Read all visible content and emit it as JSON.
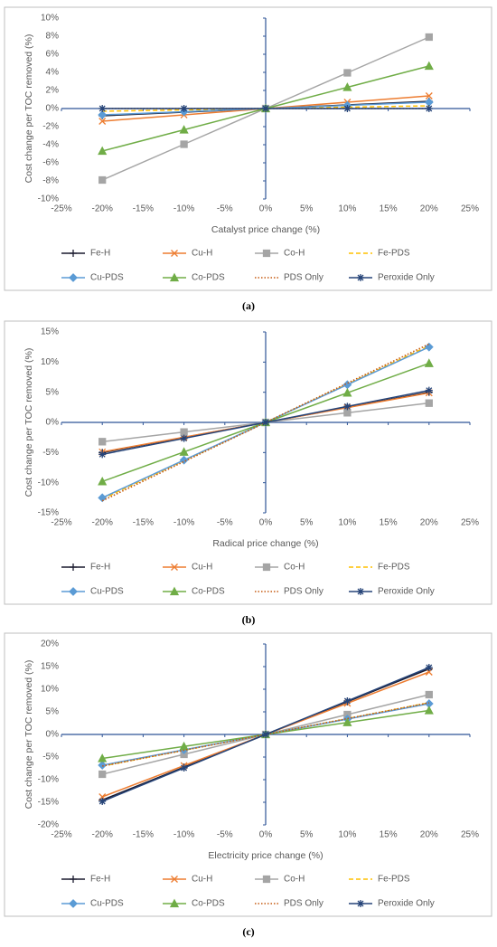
{
  "chart_data": [
    {
      "type": "line",
      "label": "(a)",
      "x_label": "Catalyst price change (%)",
      "y_label": "Cost change per TOC removed (%)",
      "grid": false,
      "x": [
        -20,
        -10,
        0,
        10,
        20
      ],
      "xlim": [
        -25,
        25
      ],
      "xticks": [
        {
          "value": -25,
          "label": "-25%"
        },
        {
          "value": -20,
          "label": "-20%"
        },
        {
          "value": -15,
          "label": "-15%"
        },
        {
          "value": -10,
          "label": "-10%"
        },
        {
          "value": -5,
          "label": "-5%"
        },
        {
          "value": 0,
          "label": "0%"
        },
        {
          "value": 5,
          "label": "5%"
        },
        {
          "value": 10,
          "label": "10%"
        },
        {
          "value": 15,
          "label": "15%"
        },
        {
          "value": 20,
          "label": "20%"
        },
        {
          "value": 25,
          "label": "25%"
        }
      ],
      "ylim": [
        -10,
        10
      ],
      "yticks": [
        {
          "value": -10,
          "label": "-10%"
        },
        {
          "value": -8,
          "label": "-8%"
        },
        {
          "value": -6,
          "label": "-6%"
        },
        {
          "value": -4,
          "label": "-4%"
        },
        {
          "value": -2,
          "label": "-2%"
        },
        {
          "value": 0,
          "label": "0%"
        },
        {
          "value": 2,
          "label": "2%"
        },
        {
          "value": 4,
          "label": "4%"
        },
        {
          "value": 6,
          "label": "6%"
        },
        {
          "value": 8,
          "label": "8%"
        },
        {
          "value": 10,
          "label": "10%"
        }
      ],
      "series": [
        {
          "name": "Fe-H",
          "color": "#1a1a2e",
          "marker": "plus",
          "line_style": "solid",
          "values": [
            -0.8,
            -0.4,
            0,
            0.4,
            0.8
          ]
        },
        {
          "name": "Cu-H",
          "color": "#ed7d31",
          "marker": "x",
          "line_style": "solid",
          "values": [
            -1.4,
            -0.7,
            0,
            0.7,
            1.4
          ]
        },
        {
          "name": "Co-H",
          "color": "#a5a5a5",
          "marker": "square",
          "line_style": "solid",
          "values": [
            -7.9,
            -3.95,
            0,
            3.95,
            7.9
          ]
        },
        {
          "name": "Fe-PDS",
          "color": "#ffc000",
          "marker": "none",
          "line_style": "dashed",
          "values": [
            -0.3,
            -0.15,
            0,
            0.15,
            0.3
          ]
        },
        {
          "name": "Cu-PDS",
          "color": "#5b9bd5",
          "marker": "diamond",
          "line_style": "solid",
          "values": [
            -0.7,
            -0.35,
            0,
            0.35,
            0.7
          ]
        },
        {
          "name": "Co-PDS",
          "color": "#70ad47",
          "marker": "triangle",
          "line_style": "solid",
          "values": [
            -4.7,
            -2.35,
            0,
            2.35,
            4.7
          ]
        },
        {
          "name": "PDS Only",
          "color": "#c55a11",
          "marker": "none",
          "line_style": "dotted",
          "values": [
            0,
            0,
            0,
            0,
            0
          ]
        },
        {
          "name": "Peroxide Only",
          "color": "#264478",
          "marker": "asterisk",
          "line_style": "solid",
          "values": [
            0,
            0,
            0,
            0,
            0
          ]
        }
      ]
    },
    {
      "type": "line",
      "label": "(b)",
      "x_label": "Radical price change (%)",
      "y_label": "Cost change per TOC removed (%)",
      "grid": false,
      "x": [
        -20,
        -10,
        0,
        10,
        20
      ],
      "xlim": [
        -25,
        25
      ],
      "xticks": [
        {
          "value": -25,
          "label": "-25%"
        },
        {
          "value": -20,
          "label": "-20%"
        },
        {
          "value": -15,
          "label": "-15%"
        },
        {
          "value": -10,
          "label": "-10%"
        },
        {
          "value": -5,
          "label": "-5%"
        },
        {
          "value": 0,
          "label": "0%"
        },
        {
          "value": 5,
          "label": "5%"
        },
        {
          "value": 10,
          "label": "10%"
        },
        {
          "value": 15,
          "label": "15%"
        },
        {
          "value": 20,
          "label": "20%"
        },
        {
          "value": 25,
          "label": "25%"
        }
      ],
      "ylim": [
        -15,
        15
      ],
      "yticks": [
        {
          "value": -15,
          "label": "-15%"
        },
        {
          "value": -10,
          "label": "-10%"
        },
        {
          "value": -5,
          "label": "-5%"
        },
        {
          "value": 0,
          "label": "0%"
        },
        {
          "value": 5,
          "label": "5%"
        },
        {
          "value": 10,
          "label": "10%"
        },
        {
          "value": 15,
          "label": "15%"
        }
      ],
      "series": [
        {
          "name": "Fe-H",
          "color": "#1a1a2e",
          "marker": "plus",
          "line_style": "solid",
          "values": [
            -5,
            -2.5,
            0,
            2.5,
            5
          ]
        },
        {
          "name": "Cu-H",
          "color": "#ed7d31",
          "marker": "x",
          "line_style": "solid",
          "values": [
            -4.9,
            -2.45,
            0,
            2.45,
            4.9
          ]
        },
        {
          "name": "Co-H",
          "color": "#a5a5a5",
          "marker": "square",
          "line_style": "solid",
          "values": [
            -3.2,
            -1.6,
            0,
            1.6,
            3.2
          ]
        },
        {
          "name": "Fe-PDS",
          "color": "#ffc000",
          "marker": "none",
          "line_style": "dashed",
          "values": [
            -12.7,
            -6.35,
            0,
            6.35,
            12.7
          ]
        },
        {
          "name": "Cu-PDS",
          "color": "#5b9bd5",
          "marker": "diamond",
          "line_style": "solid",
          "values": [
            -12.5,
            -6.25,
            0,
            6.25,
            12.5
          ]
        },
        {
          "name": "Co-PDS",
          "color": "#70ad47",
          "marker": "triangle",
          "line_style": "solid",
          "values": [
            -9.8,
            -4.9,
            0,
            4.9,
            9.8
          ]
        },
        {
          "name": "PDS Only",
          "color": "#c55a11",
          "marker": "none",
          "line_style": "dotted",
          "values": [
            -13,
            -6.5,
            0,
            6.5,
            13
          ]
        },
        {
          "name": "Peroxide Only",
          "color": "#264478",
          "marker": "asterisk",
          "line_style": "solid",
          "values": [
            -5.3,
            -2.65,
            0,
            2.65,
            5.3
          ]
        }
      ]
    },
    {
      "type": "line",
      "label": "(c)",
      "x_label": "Electricity price change (%)",
      "y_label": "Cost change per TOC removed (%)",
      "grid": false,
      "x": [
        -20,
        -10,
        0,
        10,
        20
      ],
      "xlim": [
        -25,
        25
      ],
      "xticks": [
        {
          "value": -25,
          "label": "-25%"
        },
        {
          "value": -20,
          "label": "-20%"
        },
        {
          "value": -15,
          "label": "-15%"
        },
        {
          "value": -10,
          "label": "-10%"
        },
        {
          "value": -5,
          "label": "-5%"
        },
        {
          "value": 0,
          "label": "0%"
        },
        {
          "value": 5,
          "label": "5%"
        },
        {
          "value": 10,
          "label": "10%"
        },
        {
          "value": 15,
          "label": "15%"
        },
        {
          "value": 20,
          "label": "20%"
        },
        {
          "value": 25,
          "label": "25%"
        }
      ],
      "ylim": [
        -20,
        20
      ],
      "yticks": [
        {
          "value": -20,
          "label": "-20%"
        },
        {
          "value": -15,
          "label": "-15%"
        },
        {
          "value": -10,
          "label": "-10%"
        },
        {
          "value": -5,
          "label": "-5%"
        },
        {
          "value": 0,
          "label": "0%"
        },
        {
          "value": 5,
          "label": "5%"
        },
        {
          "value": 10,
          "label": "10%"
        },
        {
          "value": 15,
          "label": "15%"
        },
        {
          "value": 20,
          "label": "20%"
        }
      ],
      "series": [
        {
          "name": "Fe-H",
          "color": "#1a1a2e",
          "marker": "plus",
          "line_style": "solid",
          "values": [
            -14.5,
            -7.25,
            0,
            7.25,
            14.5
          ]
        },
        {
          "name": "Cu-H",
          "color": "#ed7d31",
          "marker": "x",
          "line_style": "solid",
          "values": [
            -13.8,
            -6.9,
            0,
            6.9,
            13.8
          ]
        },
        {
          "name": "Co-H",
          "color": "#a5a5a5",
          "marker": "square",
          "line_style": "solid",
          "values": [
            -8.8,
            -4.4,
            0,
            4.4,
            8.8
          ]
        },
        {
          "name": "Fe-PDS",
          "color": "#ffc000",
          "marker": "none",
          "line_style": "dashed",
          "values": [
            -7,
            -3.5,
            0,
            3.5,
            7
          ]
        },
        {
          "name": "Cu-PDS",
          "color": "#5b9bd5",
          "marker": "diamond",
          "line_style": "solid",
          "values": [
            -6.8,
            -3.4,
            0,
            3.4,
            6.8
          ]
        },
        {
          "name": "Co-PDS",
          "color": "#70ad47",
          "marker": "triangle",
          "line_style": "solid",
          "values": [
            -5.3,
            -2.65,
            0,
            2.65,
            5.3
          ]
        },
        {
          "name": "PDS Only",
          "color": "#c55a11",
          "marker": "none",
          "line_style": "dotted",
          "values": [
            -7,
            -3.5,
            0,
            3.5,
            7
          ]
        },
        {
          "name": "Peroxide Only",
          "color": "#264478",
          "marker": "asterisk",
          "line_style": "solid",
          "values": [
            -14.8,
            -7.4,
            0,
            7.4,
            14.8
          ]
        }
      ]
    }
  ]
}
